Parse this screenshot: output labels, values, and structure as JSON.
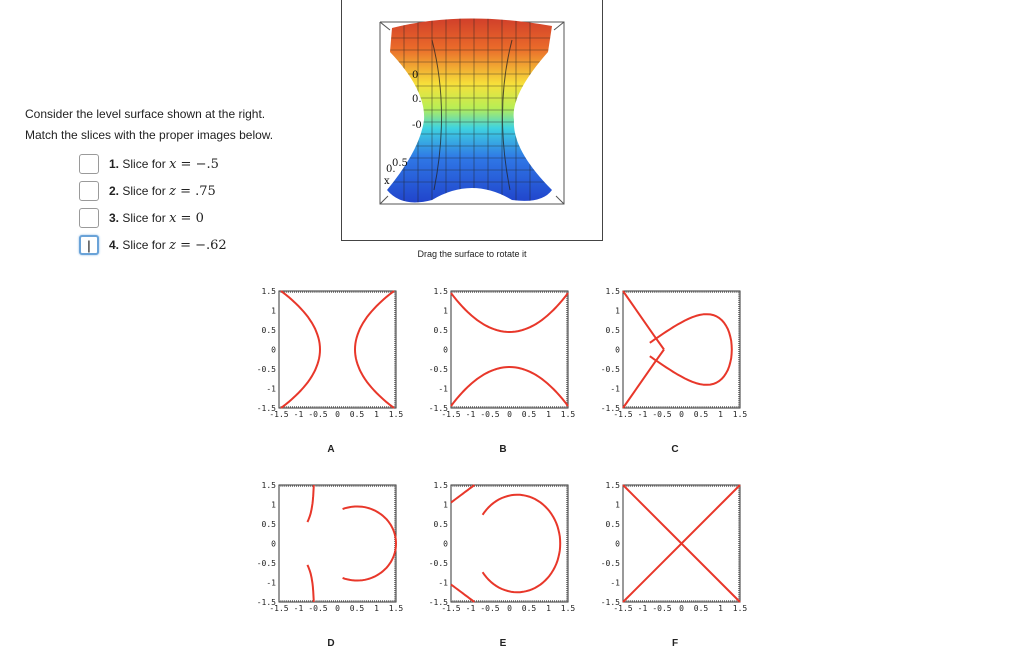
{
  "instructions": {
    "line1": "Consider the level surface shown at the right.",
    "line2": "Match the slices with the proper images below."
  },
  "slices": [
    {
      "number": "1.",
      "prefix": "Slice for",
      "var": "x",
      "op": "=",
      "value": "−.5",
      "answer": ""
    },
    {
      "number": "2.",
      "prefix": "Slice for",
      "var": "z",
      "op": "=",
      "value": ".75",
      "answer": ""
    },
    {
      "number": "3.",
      "prefix": "Slice for",
      "var": "x",
      "op": "=",
      "value": "0",
      "answer": ""
    },
    {
      "number": "4.",
      "prefix": "Slice for",
      "var": "z",
      "op": "=",
      "value": "−.62",
      "answer": "|"
    }
  ],
  "viewer": {
    "caption": "Drag the surface to rotate it",
    "axis_labels": [
      "0",
      "0.",
      "-0",
      "0.",
      "0.5",
      "x"
    ]
  },
  "plots": {
    "ticks": [
      "-1.5",
      "-1",
      "-0.5",
      "0",
      "0.5",
      "1",
      "1.5"
    ],
    "items": [
      {
        "letter": "A"
      },
      {
        "letter": "B"
      },
      {
        "letter": "C"
      },
      {
        "letter": "D"
      },
      {
        "letter": "E"
      },
      {
        "letter": "F"
      }
    ]
  },
  "colors": {
    "curve": "#e8372a",
    "active_border": "#6aa3d8"
  }
}
